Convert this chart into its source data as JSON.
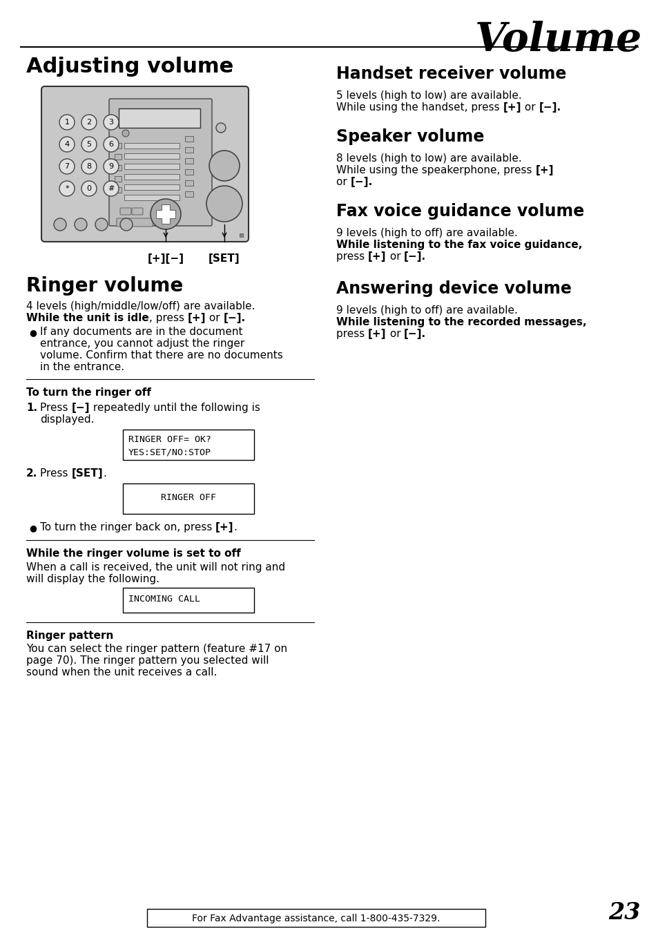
{
  "bg_color": "#ffffff",
  "title_italic": "Volume",
  "section1_title": "Adjusting volume",
  "handset_title": "Handset receiver volume",
  "handset_text1": "5 levels (high to low) are available.",
  "handset_text2a": "While using the handset, press ",
  "handset_text2b": "[+]",
  "handset_text2c": " or ",
  "handset_text2d": "[−].",
  "speaker_title": "Speaker volume",
  "speaker_text1": "8 levels (high to low) are available.",
  "speaker_text2a": "While using the speakerphone, press ",
  "speaker_text2b": "[+]",
  "speaker_text3a": "or ",
  "speaker_text3b": "[−].",
  "fax_title": "Fax voice guidance volume",
  "fax_text1": "9 levels (high to off) are available.",
  "fax_text2": "While listening to the fax voice guidance,",
  "fax_text3a": "press ",
  "fax_text3b": "[+]",
  "fax_text3c": " or ",
  "fax_text3d": "[−].",
  "answering_title": "Answering device volume",
  "answering_text1": "9 levels (high to off) are available.",
  "answering_text2": "While listening to the recorded messages,",
  "answering_text3a": "press ",
  "answering_text3b": "[+]",
  "answering_text3c": " or ",
  "answering_text3d": "[−].",
  "ringer_title": "Ringer volume",
  "ringer_text1": "4 levels (high/middle/low/off) are available.",
  "ringer_text2a": "While the unit is idle",
  "ringer_text2b": ", press ",
  "ringer_text2c": "[+]",
  "ringer_text2d": " or ",
  "ringer_text2e": "[−].",
  "ringer_bullet": "If any documents are in the document\nentrance, you cannot adjust the ringer\nvolume. Confirm that there are no documents\nin the entrance.",
  "section_turn_off": "To turn the ringer off",
  "step1a": "Press ",
  "step1b": "[−]",
  "step1c": " repeatedly until the following is",
  "step1_cont": "displayed.",
  "box1_line1": "RINGER OFF= OK?",
  "box1_line2": "YES:SET/NO:STOP",
  "step2a": "Press ",
  "step2b": "[SET]",
  "step2c": ".",
  "box2_line1": "RINGER OFF",
  "bullet2a": "To turn the ringer back on, press ",
  "bullet2b": "[+]",
  "bullet2c": ".",
  "section_while_off": "While the ringer volume is set to off",
  "while_off_line1": "When a call is received, the unit will not ring and",
  "while_off_line2": "will display the following.",
  "box3_line1": "INCOMING CALL",
  "ringer_pattern_title": "Ringer pattern",
  "ringer_pattern_line1": "You can select the ringer pattern (feature #17 on",
  "ringer_pattern_line2": "page 70). The ringer pattern you selected will",
  "ringer_pattern_line3": "sound when the unit receives a call.",
  "footer_text": "For Fax Advantage assistance, call 1-800-435-7329.",
  "page_num": "23"
}
